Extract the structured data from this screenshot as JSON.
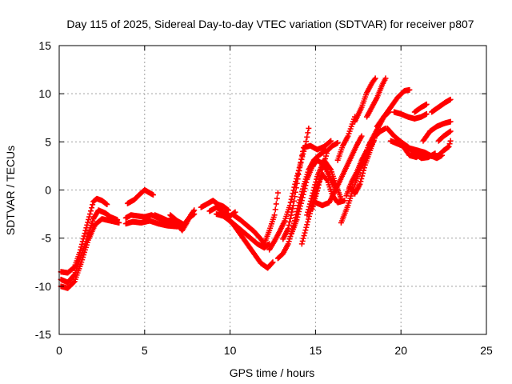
{
  "chart_data": {
    "type": "scatter",
    "title": "Day 115 of 2025, Sidereal Day-to-day VTEC variation (SDTVAR) for receiver p807",
    "xlabel": "GPS time / hours",
    "ylabel": "SDTVAR / TECUs",
    "xlim": [
      0,
      25
    ],
    "ylim": [
      -15,
      15
    ],
    "xticks": [
      0,
      5,
      10,
      15,
      20,
      25
    ],
    "yticks": [
      -15,
      -10,
      -5,
      0,
      5,
      10,
      15
    ],
    "xtick_labels": [
      "0",
      "5",
      "10",
      "15",
      "20",
      "25"
    ],
    "ytick_labels": [
      "-15",
      "-10",
      "-5",
      "0",
      "5",
      "10",
      "15"
    ],
    "grid": true,
    "legend": "none",
    "marker": "plus",
    "series_color": "#ff0000",
    "series": [
      {
        "values": [
          [
            0.1,
            -8.5
          ],
          [
            0.5,
            -8.6
          ],
          [
            0.9,
            -8
          ],
          [
            1.2,
            -6.5
          ],
          [
            1.5,
            -4.5
          ],
          [
            1.8,
            -2.5
          ],
          [
            2.0,
            -1.2
          ],
          [
            2.2,
            -0.9
          ],
          [
            2.5,
            -1.1
          ],
          [
            2.8,
            -1.5
          ]
        ]
      },
      {
        "values": [
          [
            0.1,
            -9.3
          ],
          [
            0.5,
            -9.6
          ],
          [
            0.9,
            -8.8
          ],
          [
            1.3,
            -6.8
          ],
          [
            1.7,
            -4.6
          ],
          [
            2.0,
            -3
          ],
          [
            2.3,
            -2.1
          ],
          [
            2.7,
            -2.4
          ],
          [
            3.0,
            -2.8
          ],
          [
            3.4,
            -3.1
          ]
        ]
      },
      {
        "values": [
          [
            0.1,
            -10
          ],
          [
            0.5,
            -10.2
          ],
          [
            0.9,
            -9.5
          ],
          [
            1.3,
            -7.5
          ],
          [
            1.7,
            -5.2
          ],
          [
            2.1,
            -3.6
          ],
          [
            2.5,
            -3
          ],
          [
            3.0,
            -3.2
          ],
          [
            3.5,
            -3.4
          ]
        ]
      },
      {
        "values": [
          [
            3.9,
            -2.9
          ],
          [
            4.2,
            -2.6
          ],
          [
            4.6,
            -2.7
          ],
          [
            5.0,
            -2.8
          ],
          [
            5.4,
            -2.6
          ],
          [
            5.8,
            -2.9
          ],
          [
            6.3,
            -3.2
          ],
          [
            6.8,
            -3.1
          ]
        ]
      },
      {
        "values": [
          [
            4.0,
            -1.4
          ],
          [
            4.4,
            -1
          ],
          [
            4.8,
            -0.3
          ],
          [
            5.0,
            0
          ],
          [
            5.3,
            -0.3
          ],
          [
            5.5,
            -0.5
          ]
        ]
      },
      {
        "values": [
          [
            3.9,
            -3.5
          ],
          [
            4.3,
            -3.3
          ],
          [
            4.8,
            -3.4
          ],
          [
            5.3,
            -3.2
          ],
          [
            5.8,
            -3.5
          ],
          [
            6.3,
            -3.7
          ],
          [
            6.9,
            -3.8
          ],
          [
            7.4,
            -3.5
          ]
        ]
      },
      {
        "values": [
          [
            5.6,
            -2.6
          ],
          [
            6.0,
            -2.9
          ],
          [
            6.5,
            -3.3
          ],
          [
            7.0,
            -3.8
          ],
          [
            7.2,
            -4.2
          ],
          [
            7.4,
            -3.6
          ],
          [
            7.7,
            -2.6
          ],
          [
            7.9,
            -2.1
          ]
        ]
      },
      {
        "values": [
          [
            6.5,
            -2.6
          ],
          [
            6.9,
            -3.2
          ],
          [
            7.3,
            -3.6
          ],
          [
            7.6,
            -2.9
          ],
          [
            7.9,
            -2.5
          ]
        ]
      },
      {
        "values": [
          [
            8.3,
            -1.8
          ],
          [
            8.7,
            -1.4
          ],
          [
            9.0,
            -1.1
          ],
          [
            9.3,
            -1.5
          ],
          [
            9.6,
            -1.7
          ],
          [
            9.9,
            -2.1
          ]
        ]
      },
      {
        "values": [
          [
            8.8,
            -2.2
          ],
          [
            9.2,
            -1.8
          ],
          [
            9.6,
            -2.3
          ],
          [
            10.0,
            -2.7
          ],
          [
            10.3,
            -2.3
          ]
        ]
      },
      {
        "values": [
          [
            9.2,
            -2.5
          ],
          [
            9.6,
            -2.7
          ],
          [
            10.0,
            -3.2
          ],
          [
            10.4,
            -3.8
          ],
          [
            10.8,
            -4.4
          ],
          [
            11.2,
            -5.0
          ],
          [
            11.6,
            -5.6
          ],
          [
            12.0,
            -6.0
          ],
          [
            12.3,
            -5.6
          ]
        ]
      },
      {
        "values": [
          [
            9.8,
            -2.9
          ],
          [
            10.2,
            -3.6
          ],
          [
            10.6,
            -4.6
          ],
          [
            11.0,
            -5.6
          ],
          [
            11.4,
            -6.6
          ],
          [
            11.8,
            -7.6
          ],
          [
            12.2,
            -8.1
          ],
          [
            12.5,
            -7.5
          ]
        ]
      },
      {
        "values": [
          [
            10.2,
            -2.6
          ],
          [
            10.6,
            -3.1
          ],
          [
            11.0,
            -3.7
          ],
          [
            11.4,
            -4.3
          ],
          [
            11.8,
            -5.1
          ],
          [
            12.0,
            -5.6
          ],
          [
            12.3,
            -4.2
          ],
          [
            12.6,
            -2.6
          ],
          [
            12.8,
            -0.3
          ]
        ]
      },
      {
        "values": [
          [
            12.3,
            -6.2
          ],
          [
            12.6,
            -5.3
          ],
          [
            12.9,
            -4.3
          ],
          [
            13.2,
            -3.2
          ],
          [
            13.5,
            -1.6
          ],
          [
            13.8,
            0.6
          ],
          [
            14.1,
            2.6
          ],
          [
            14.4,
            4.6
          ],
          [
            14.6,
            6.4
          ]
        ]
      },
      {
        "values": [
          [
            12.8,
            -7.1
          ],
          [
            13.1,
            -6.6
          ],
          [
            13.4,
            -5.6
          ],
          [
            13.7,
            -3.8
          ],
          [
            14.0,
            -1.6
          ],
          [
            14.3,
            0.4
          ],
          [
            14.6,
            2.1
          ],
          [
            14.9,
            3.1
          ],
          [
            15.2,
            3.6
          ],
          [
            15.6,
            4.1
          ]
        ]
      },
      {
        "values": [
          [
            13.1,
            -5.1
          ],
          [
            13.4,
            -4.0
          ],
          [
            13.7,
            -1.6
          ],
          [
            14.0,
            1.6
          ],
          [
            14.3,
            4.4
          ],
          [
            14.7,
            4.6
          ],
          [
            15.1,
            4.2
          ],
          [
            15.5,
            4.5
          ],
          [
            15.9,
            5.1
          ]
        ]
      },
      {
        "values": [
          [
            13.6,
            -4.5
          ],
          [
            13.9,
            -3.1
          ],
          [
            14.2,
            -1.1
          ],
          [
            14.5,
            1.1
          ],
          [
            14.8,
            2.4
          ],
          [
            15.1,
            3.1
          ],
          [
            15.5,
            2.6
          ],
          [
            15.9,
            1.1
          ],
          [
            16.2,
            0.1
          ]
        ]
      },
      {
        "values": [
          [
            14.2,
            -5.6
          ],
          [
            14.5,
            -3.6
          ],
          [
            14.8,
            -1.6
          ],
          [
            15.1,
            0.4
          ],
          [
            15.4,
            1.6
          ],
          [
            15.7,
            1.0
          ],
          [
            16.0,
            -0.6
          ],
          [
            16.3,
            -1.3
          ],
          [
            16.7,
            -1.1
          ]
        ]
      },
      {
        "values": [
          [
            14.5,
            -2.6
          ],
          [
            14.8,
            -0.6
          ],
          [
            15.1,
            1.4
          ],
          [
            15.5,
            3.1
          ],
          [
            15.9,
            2.1
          ],
          [
            16.2,
            0.5
          ],
          [
            16.5,
            -0.9
          ]
        ]
      },
      {
        "values": [
          [
            14.8,
            -2.0
          ],
          [
            15.1,
            -0.1
          ],
          [
            15.4,
            2.1
          ],
          [
            15.7,
            4.1
          ],
          [
            16.0,
            4.6
          ],
          [
            16.3,
            4.9
          ]
        ]
      },
      {
        "values": [
          [
            15.0,
            -1.3
          ],
          [
            15.4,
            -1.6
          ],
          [
            15.8,
            -1.3
          ],
          [
            16.2,
            0.1
          ],
          [
            16.6,
            1.6
          ],
          [
            17.0,
            3.1
          ],
          [
            17.4,
            4.6
          ],
          [
            17.7,
            5.6
          ]
        ]
      },
      {
        "values": [
          [
            16.3,
            3.1
          ],
          [
            16.6,
            4.6
          ],
          [
            16.9,
            5.6
          ],
          [
            17.1,
            6.6
          ],
          [
            17.3,
            7.6
          ]
        ]
      },
      {
        "values": [
          [
            16.5,
            -3.4
          ],
          [
            16.9,
            -1.6
          ],
          [
            17.2,
            0.1
          ],
          [
            17.5,
            1.6
          ],
          [
            17.8,
            3.1
          ],
          [
            18.1,
            4.6
          ],
          [
            18.4,
            5.6
          ],
          [
            18.7,
            6.6
          ],
          [
            19.0,
            7.6
          ],
          [
            19.3,
            8.1
          ]
        ]
      },
      {
        "values": [
          [
            16.8,
            -0.6
          ],
          [
            17.1,
            0.8
          ],
          [
            17.4,
            1.8
          ],
          [
            17.7,
            3.1
          ],
          [
            18.0,
            4.1
          ]
        ]
      },
      {
        "values": [
          [
            17.0,
            0.4
          ],
          [
            17.3,
            -0.4
          ],
          [
            17.6,
            0.6
          ],
          [
            17.9,
            2.6
          ],
          [
            18.2,
            4.1
          ],
          [
            18.5,
            5.6
          ],
          [
            18.8,
            6.1
          ],
          [
            19.1,
            6.4
          ]
        ]
      },
      {
        "values": [
          [
            17.5,
            2.0
          ],
          [
            17.8,
            3.0
          ],
          [
            18.1,
            4.1
          ],
          [
            18.4,
            5.1
          ]
        ]
      },
      {
        "values": [
          [
            17.3,
            7.1
          ],
          [
            17.7,
            8.6
          ],
          [
            18.0,
            10.1
          ],
          [
            18.3,
            11.1
          ],
          [
            18.5,
            11.6
          ]
        ]
      },
      {
        "values": [
          [
            18.0,
            7.6
          ],
          [
            18.3,
            8.6
          ],
          [
            18.6,
            9.6
          ],
          [
            18.9,
            10.9
          ],
          [
            19.1,
            11.6
          ]
        ]
      },
      {
        "values": [
          [
            18.6,
            6.6
          ],
          [
            19.0,
            7.6
          ],
          [
            19.4,
            8.6
          ],
          [
            19.8,
            9.6
          ],
          [
            20.2,
            10.3
          ],
          [
            20.5,
            10.4
          ]
        ]
      },
      {
        "values": [
          [
            19.2,
            6.4
          ],
          [
            19.6,
            5.6
          ],
          [
            20.0,
            5.0
          ],
          [
            20.4,
            4.5
          ],
          [
            20.8,
            3.8
          ],
          [
            21.2,
            3.3
          ],
          [
            21.6,
            3.4
          ],
          [
            22.0,
            3.8
          ]
        ]
      },
      {
        "values": [
          [
            19.4,
            5.1
          ],
          [
            19.8,
            4.8
          ],
          [
            20.2,
            4.5
          ],
          [
            20.6,
            4.3
          ],
          [
            21.0,
            4.1
          ],
          [
            21.4,
            3.9
          ],
          [
            21.8,
            3.5
          ]
        ]
      },
      {
        "values": [
          [
            19.6,
            8.1
          ],
          [
            20.0,
            7.9
          ],
          [
            20.4,
            7.6
          ],
          [
            20.8,
            7.4
          ],
          [
            21.2,
            7.6
          ],
          [
            21.5,
            7.9
          ]
        ]
      },
      {
        "values": [
          [
            20.1,
            4.6
          ],
          [
            20.5,
            3.6
          ],
          [
            20.9,
            3.4
          ],
          [
            21.3,
            3.9
          ],
          [
            21.7,
            3.6
          ],
          [
            22.1,
            3.3
          ],
          [
            22.4,
            3.6
          ]
        ]
      },
      {
        "values": [
          [
            20.8,
            8.1
          ],
          [
            21.2,
            8.6
          ],
          [
            21.5,
            8.9
          ]
        ]
      },
      {
        "values": [
          [
            21.3,
            5.1
          ],
          [
            21.7,
            6.1
          ],
          [
            22.1,
            6.6
          ],
          [
            22.5,
            6.9
          ],
          [
            22.9,
            7.1
          ]
        ]
      },
      {
        "values": [
          [
            21.8,
            8.1
          ],
          [
            22.2,
            8.6
          ],
          [
            22.6,
            9.1
          ],
          [
            22.9,
            9.4
          ]
        ]
      },
      {
        "values": [
          [
            22.2,
            3.6
          ],
          [
            22.5,
            4.1
          ],
          [
            22.8,
            4.5
          ],
          [
            22.9,
            5.1
          ]
        ]
      },
      {
        "values": [
          [
            22.2,
            5.1
          ],
          [
            22.5,
            5.6
          ],
          [
            22.9,
            6.1
          ]
        ]
      }
    ]
  }
}
